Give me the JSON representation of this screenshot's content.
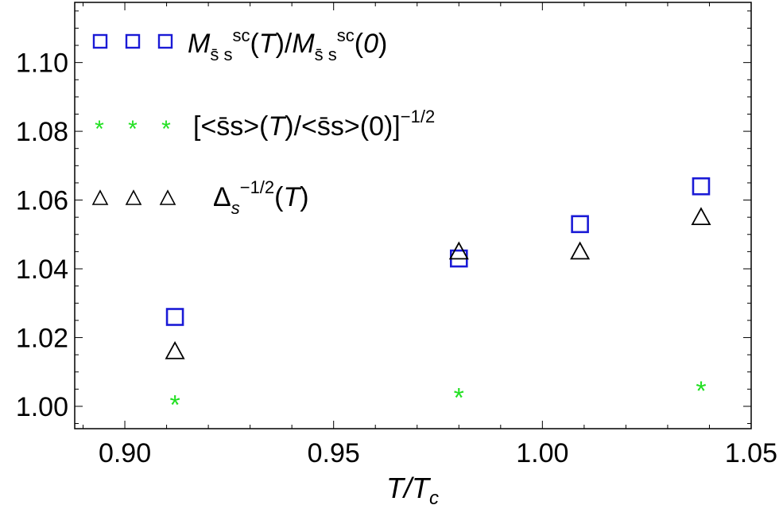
{
  "chart_data": {
    "type": "scatter",
    "xlabel": "T/T_c",
    "xlim": [
      0.888,
      1.05
    ],
    "ylim": [
      0.9935,
      1.1175
    ],
    "x_ticks": [
      {
        "value": 0.9,
        "label": "0.90"
      },
      {
        "value": 0.95,
        "label": "0.95"
      },
      {
        "value": 1.0,
        "label": "1.00"
      },
      {
        "value": 1.05,
        "label": "1.05"
      }
    ],
    "y_ticks": [
      {
        "value": 1.0,
        "label": "1.00"
      },
      {
        "value": 1.02,
        "label": "1.02"
      },
      {
        "value": 1.04,
        "label": "1.04"
      },
      {
        "value": 1.06,
        "label": "1.06"
      },
      {
        "value": 1.08,
        "label": "1.08"
      },
      {
        "value": 1.1,
        "label": "1.10"
      }
    ],
    "legend_position": "top-left",
    "series": [
      {
        "name": "M_{s̄s}^{sc}(T)/M_{s̄s}^{sc}(0)",
        "marker": "square",
        "color": "#1a1ad6",
        "x": [
          0.912,
          0.98,
          1.009,
          1.038
        ],
        "y": [
          1.026,
          1.043,
          1.053,
          1.064
        ]
      },
      {
        "name": "[<s̄s>(T)/<s̄s>(0)]^{-1/2}",
        "marker": "star",
        "color": "#22e022",
        "x": [
          0.912,
          0.98,
          1.038
        ],
        "y": [
          1.002,
          1.004,
          1.006
        ]
      },
      {
        "name": "Δ_s^{-1/2}(T)",
        "marker": "triangle",
        "color": "#000000",
        "x": [
          0.912,
          0.98,
          1.009,
          1.038
        ],
        "y": [
          1.016,
          1.045,
          1.045,
          1.055
        ]
      }
    ]
  }
}
